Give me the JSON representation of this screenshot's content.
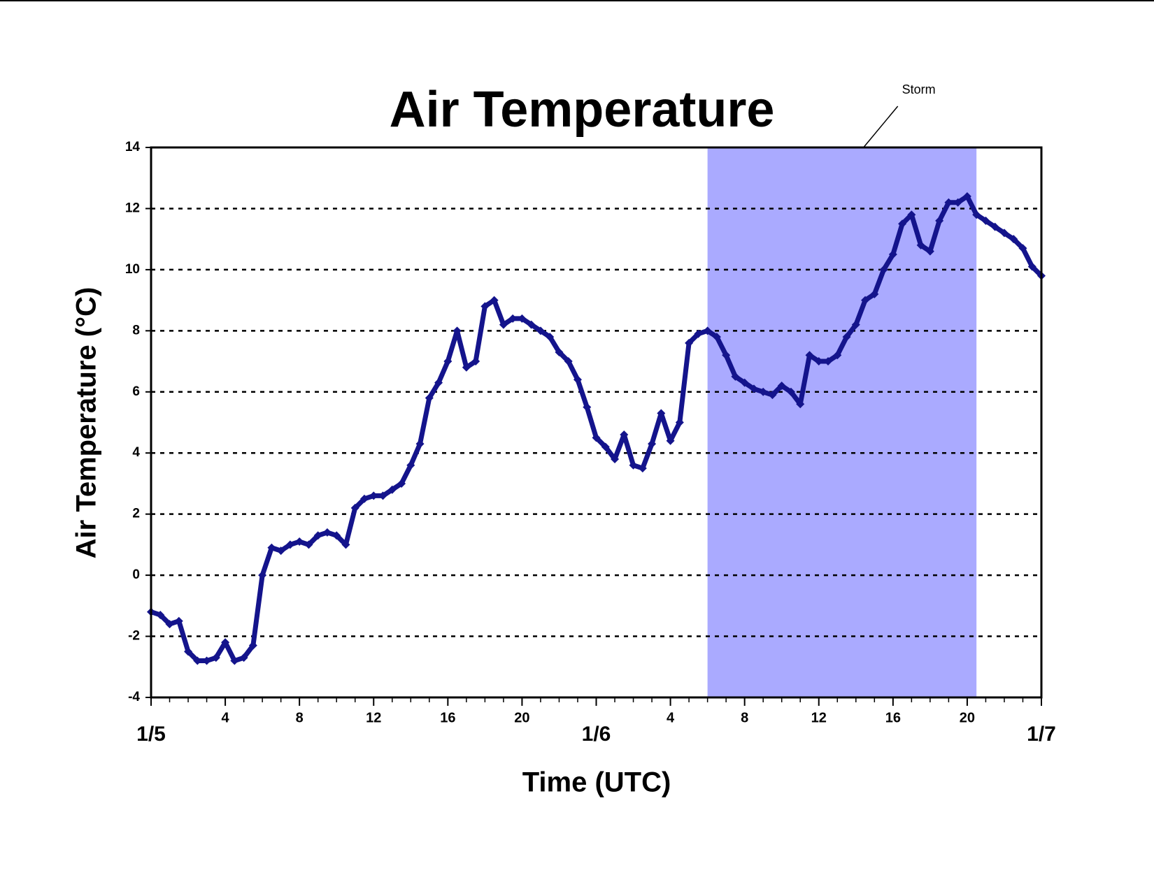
{
  "chart_data": {
    "type": "scatter",
    "title": "Air Temperature",
    "xlabel": "Time (UTC)",
    "ylabel": "Air Temperature (°C)",
    "color": "#14148c",
    "grid": true,
    "xlim": [
      0,
      48
    ],
    "ylim": [
      -4,
      14
    ],
    "yticks": [
      -4,
      -2,
      0,
      2,
      4,
      6,
      8,
      10,
      12,
      14
    ],
    "xticks": [
      {
        "value": 0,
        "label": "1/5"
      },
      4,
      8,
      12,
      16,
      20,
      {
        "value": 24,
        "label": "1/6"
      },
      {
        "value": 28,
        "label": "4"
      },
      {
        "value": 32,
        "label": "8"
      },
      {
        "value": 36,
        "label": "12"
      },
      {
        "value": 40,
        "label": "16"
      },
      {
        "value": 44,
        "label": "20"
      },
      {
        "value": 48,
        "label": "1/7"
      }
    ],
    "xminorticks": [
      0,
      1,
      2,
      3,
      4,
      5,
      6,
      7,
      8,
      9,
      10,
      11,
      12,
      13,
      14,
      15,
      16,
      17,
      18,
      19,
      20,
      21,
      22,
      23,
      24,
      25,
      26,
      27,
      28,
      29,
      30,
      31,
      32,
      33,
      34,
      35,
      36,
      37,
      38,
      39,
      40,
      41,
      42,
      43,
      44,
      45,
      46,
      47,
      48
    ],
    "shaded_region": {
      "label": "Storm",
      "xmin": 30,
      "xmax": 44.5,
      "color": "#aaaaff"
    },
    "x": [
      0,
      0.5,
      1,
      1.5,
      2,
      2.5,
      3,
      3.5,
      4,
      4.5,
      5,
      5.5,
      6,
      6.5,
      7,
      7.5,
      8,
      8.5,
      9,
      9.5,
      10,
      10.5,
      11,
      11.5,
      12,
      12.5,
      13,
      13.5,
      14,
      14.5,
      15,
      15.5,
      16,
      16.5,
      17,
      17.5,
      18,
      18.5,
      19,
      19.5,
      20,
      20.5,
      21,
      21.5,
      22,
      22.5,
      23,
      23.5,
      24,
      24.5,
      25,
      25.5,
      26,
      26.5,
      27,
      27.5,
      28,
      28.5,
      29,
      29.5,
      30,
      30.5,
      31,
      31.5,
      32,
      32.5,
      33,
      33.5,
      34,
      34.5,
      35,
      35.5,
      36,
      36.5,
      37,
      37.5,
      38,
      38.5,
      39,
      39.5,
      40,
      40.5,
      41,
      41.5,
      42,
      42.5,
      43,
      43.5,
      44,
      44.5,
      45,
      45.5,
      46,
      46.5,
      47,
      47.5,
      48
    ],
    "values": [
      -1.2,
      -1.3,
      -1.6,
      -1.5,
      -2.5,
      -2.8,
      -2.8,
      -2.7,
      -2.2,
      -2.8,
      -2.7,
      -2.3,
      0.0,
      0.9,
      0.8,
      1.0,
      1.1,
      1.0,
      1.3,
      1.4,
      1.3,
      1.0,
      2.2,
      2.5,
      2.6,
      2.6,
      2.8,
      3.0,
      3.6,
      4.3,
      5.8,
      6.3,
      7.0,
      8.0,
      6.8,
      7.0,
      8.8,
      9.0,
      8.2,
      8.4,
      8.4,
      8.2,
      8.0,
      7.8,
      7.3,
      7.0,
      6.4,
      5.5,
      4.5,
      4.2,
      3.8,
      4.6,
      3.6,
      3.5,
      4.3,
      5.3,
      4.4,
      5.0,
      7.6,
      7.9,
      8.0,
      7.8,
      7.2,
      6.5,
      6.3,
      6.1,
      6.0,
      5.9,
      6.2,
      6.0,
      5.6,
      7.2,
      7.0,
      7.0,
      7.2,
      7.8,
      8.2,
      9.0,
      9.2,
      10.0,
      10.5,
      11.5,
      11.8,
      10.8,
      10.6,
      11.6,
      12.2,
      12.2,
      12.4,
      11.8,
      11.6,
      11.4,
      11.2,
      11.0,
      10.7,
      10.1,
      9.8
    ]
  }
}
